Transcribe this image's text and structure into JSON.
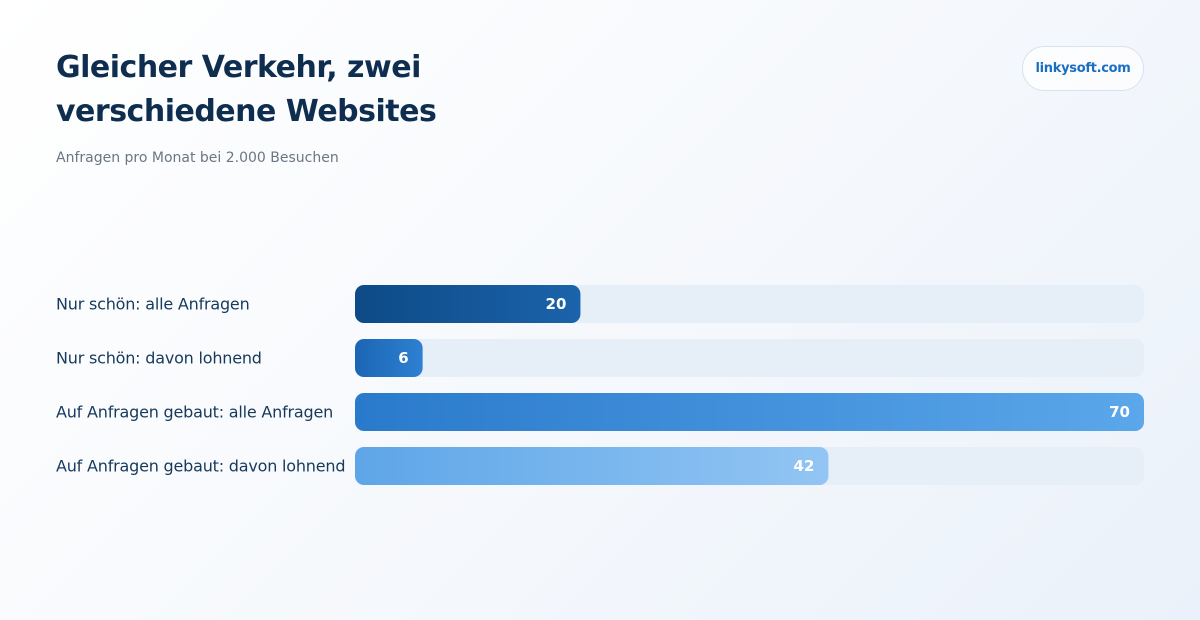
{
  "header": {
    "title": "Gleicher Verkehr, zwei verschiedene Websites",
    "subtitle": "Anfragen pro Monat bei 2.000 Besuchen",
    "brand": "linkysoft.com"
  },
  "colors": {
    "track": "#e6eef8",
    "title": "#0f2e4f",
    "label": "#17395c",
    "brand": "#1a6fc0",
    "bar_gradients": [
      [
        "#0d4a86",
        "#1b63ab"
      ],
      [
        "#1a66b4",
        "#2f80d2"
      ],
      [
        "#2a7acc",
        "#5ba7ea"
      ],
      [
        "#5ea6e8",
        "#92c5f3"
      ]
    ]
  },
  "chart_data": {
    "type": "bar",
    "orientation": "horizontal",
    "categories": [
      "Nur schön: alle Anfragen",
      "Nur schön: davon lohnend",
      "Auf Anfragen gebaut: alle Anfragen",
      "Auf Anfragen gebaut: davon lohnend"
    ],
    "values": [
      20,
      6,
      70,
      42
    ],
    "xlim": [
      0,
      70
    ],
    "title": "Gleicher Verkehr, zwei verschiedene Websites",
    "subtitle": "Anfragen pro Monat bei 2.000 Besuchen",
    "xlabel": "",
    "ylabel": "",
    "grid": false,
    "legend": "none",
    "data_labels": true
  }
}
